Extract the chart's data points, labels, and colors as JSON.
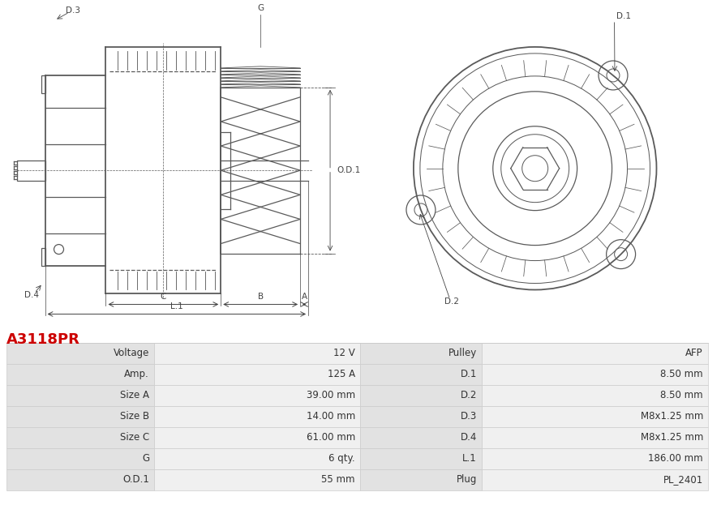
{
  "title": "A3118PR",
  "title_color": "#cc0000",
  "table_rows": [
    [
      "Voltage",
      "12 V",
      "Pulley",
      "AFP"
    ],
    [
      "Amp.",
      "125 A",
      "D.1",
      "8.50 mm"
    ],
    [
      "Size A",
      "39.00 mm",
      "D.2",
      "8.50 mm"
    ],
    [
      "Size B",
      "14.00 mm",
      "D.3",
      "M8x1.25 mm"
    ],
    [
      "Size C",
      "61.00 mm",
      "D.4",
      "M8x1.25 mm"
    ],
    [
      "G",
      "6 qty.",
      "L.1",
      "186.00 mm"
    ],
    [
      "O.D.1",
      "55 mm",
      "Plug",
      "PL_2401"
    ]
  ],
  "bg_color": "#ffffff",
  "cell_bg_label": "#e2e2e2",
  "cell_bg_value": "#f0f0f0",
  "cell_border": "#cccccc",
  "text_color": "#333333",
  "font_size_title": 13,
  "font_size_table": 8.5,
  "line_color": "#5a5a5a",
  "label_color": "#444444",
  "label_fs": 7.5
}
